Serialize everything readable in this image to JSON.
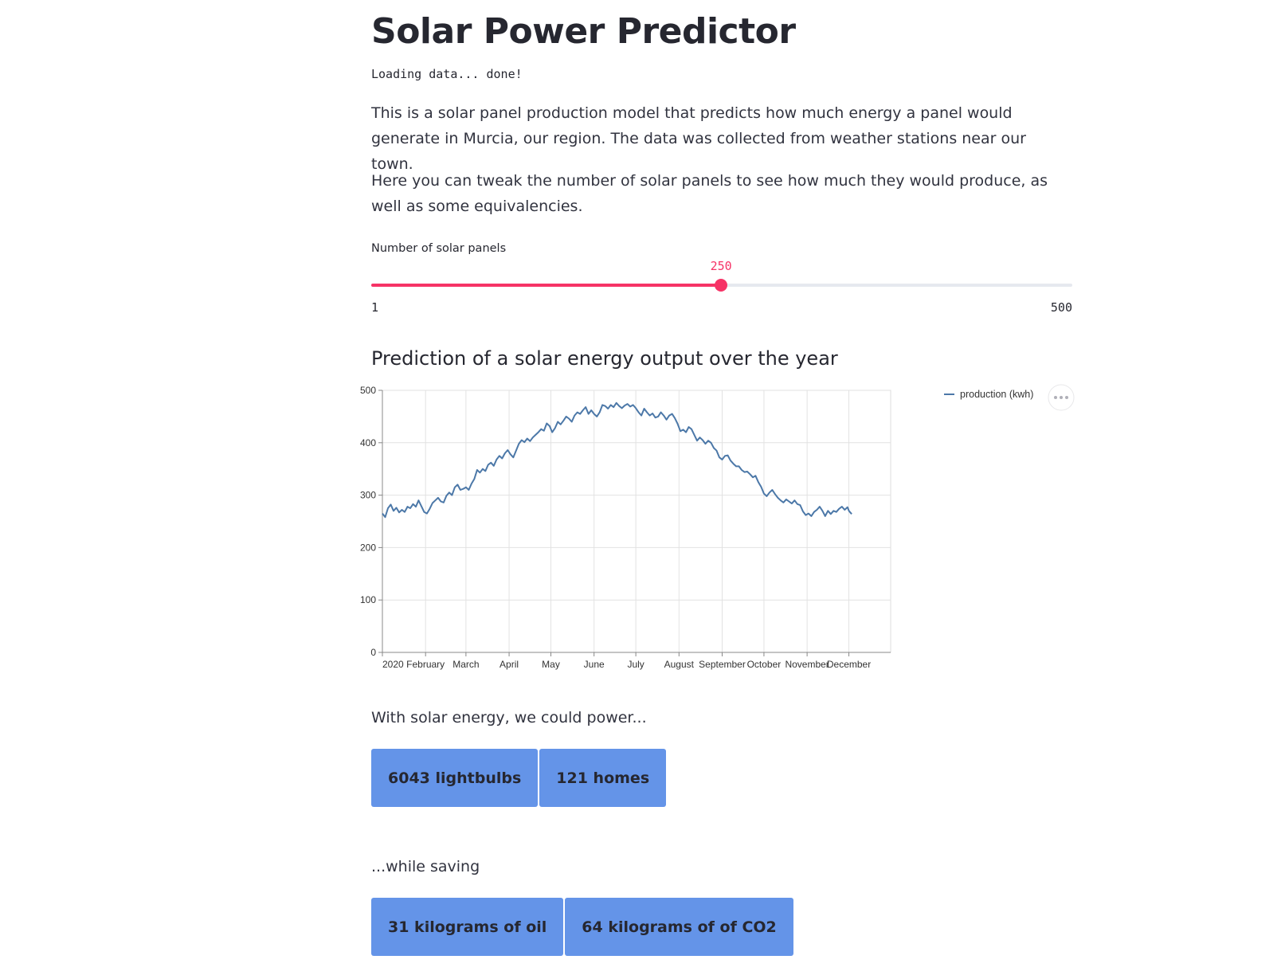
{
  "page": {
    "title": "Solar Power Predictor",
    "loading_text": "Loading data... done!",
    "intro_paragraph_1": "This is a solar panel production model that predicts how much energy a panel would generate in Murcia, our region. The data was collected from weather stations near our town.",
    "intro_paragraph_2": "Here you can tweak the number of solar panels to see how much they would produce, as well as some equivalencies."
  },
  "slider": {
    "label": "Number of solar panels",
    "value": 250,
    "min": 1,
    "max": 500,
    "value_text": "250",
    "min_text": "1",
    "max_text": "500",
    "accent_color": "#f63366",
    "track_color": "#e6e9ef"
  },
  "chart_section": {
    "subheader": "Prediction of a solar energy output over the year",
    "menu_icon": "ellipsis-icon"
  },
  "chart_data": {
    "type": "line",
    "title": "",
    "xlabel": "",
    "ylabel": "",
    "ylim": [
      0,
      500
    ],
    "xlim": [
      "2020-01-01",
      "2020-12-31"
    ],
    "yticks": [
      0,
      100,
      200,
      300,
      400,
      500
    ],
    "xticks": [
      {
        "date": "2020-01-01",
        "label": "2020"
      },
      {
        "date": "2020-02-01",
        "label": "February"
      },
      {
        "date": "2020-03-01",
        "label": "March"
      },
      {
        "date": "2020-04-01",
        "label": "April"
      },
      {
        "date": "2020-05-01",
        "label": "May"
      },
      {
        "date": "2020-06-01",
        "label": "June"
      },
      {
        "date": "2020-07-01",
        "label": "July"
      },
      {
        "date": "2020-08-01",
        "label": "August"
      },
      {
        "date": "2020-09-01",
        "label": "September"
      },
      {
        "date": "2020-10-01",
        "label": "October"
      },
      {
        "date": "2020-11-01",
        "label": "November"
      },
      {
        "date": "2020-12-01",
        "label": "December"
      }
    ],
    "grid": true,
    "legend_position": "top-right",
    "series": [
      {
        "name": "production (kwh)",
        "color": "#4c78a8",
        "points": [
          [
            "2020-01-01",
            265
          ],
          [
            "2020-01-03",
            258
          ],
          [
            "2020-01-05",
            275
          ],
          [
            "2020-01-07",
            282
          ],
          [
            "2020-01-09",
            270
          ],
          [
            "2020-01-11",
            276
          ],
          [
            "2020-01-13",
            267
          ],
          [
            "2020-01-15",
            272
          ],
          [
            "2020-01-17",
            268
          ],
          [
            "2020-01-19",
            278
          ],
          [
            "2020-01-21",
            275
          ],
          [
            "2020-01-23",
            283
          ],
          [
            "2020-01-25",
            278
          ],
          [
            "2020-01-27",
            290
          ],
          [
            "2020-01-29",
            279
          ],
          [
            "2020-01-31",
            268
          ],
          [
            "2020-02-02",
            265
          ],
          [
            "2020-02-04",
            274
          ],
          [
            "2020-02-06",
            285
          ],
          [
            "2020-02-08",
            290
          ],
          [
            "2020-02-10",
            295
          ],
          [
            "2020-02-12",
            288
          ],
          [
            "2020-02-14",
            286
          ],
          [
            "2020-02-16",
            299
          ],
          [
            "2020-02-18",
            305
          ],
          [
            "2020-02-20",
            300
          ],
          [
            "2020-02-22",
            315
          ],
          [
            "2020-02-24",
            320
          ],
          [
            "2020-02-26",
            310
          ],
          [
            "2020-02-28",
            312
          ],
          [
            "2020-03-01",
            315
          ],
          [
            "2020-03-03",
            310
          ],
          [
            "2020-03-05",
            322
          ],
          [
            "2020-03-07",
            331
          ],
          [
            "2020-03-09",
            348
          ],
          [
            "2020-03-11",
            343
          ],
          [
            "2020-03-13",
            350
          ],
          [
            "2020-03-15",
            346
          ],
          [
            "2020-03-17",
            358
          ],
          [
            "2020-03-19",
            362
          ],
          [
            "2020-03-21",
            356
          ],
          [
            "2020-03-23",
            368
          ],
          [
            "2020-03-25",
            375
          ],
          [
            "2020-03-27",
            370
          ],
          [
            "2020-03-29",
            380
          ],
          [
            "2020-03-31",
            386
          ],
          [
            "2020-04-02",
            378
          ],
          [
            "2020-04-04",
            372
          ],
          [
            "2020-04-06",
            385
          ],
          [
            "2020-04-08",
            398
          ],
          [
            "2020-04-10",
            405
          ],
          [
            "2020-04-12",
            401
          ],
          [
            "2020-04-14",
            408
          ],
          [
            "2020-04-16",
            403
          ],
          [
            "2020-04-18",
            410
          ],
          [
            "2020-04-20",
            415
          ],
          [
            "2020-04-22",
            420
          ],
          [
            "2020-04-24",
            426
          ],
          [
            "2020-04-26",
            423
          ],
          [
            "2020-04-28",
            437
          ],
          [
            "2020-04-30",
            432
          ],
          [
            "2020-05-02",
            420
          ],
          [
            "2020-05-04",
            428
          ],
          [
            "2020-05-06",
            440
          ],
          [
            "2020-05-08",
            435
          ],
          [
            "2020-05-10",
            442
          ],
          [
            "2020-05-12",
            450
          ],
          [
            "2020-05-14",
            446
          ],
          [
            "2020-05-16",
            440
          ],
          [
            "2020-05-18",
            452
          ],
          [
            "2020-05-20",
            458
          ],
          [
            "2020-05-22",
            455
          ],
          [
            "2020-05-24",
            462
          ],
          [
            "2020-05-26",
            468
          ],
          [
            "2020-05-28",
            455
          ],
          [
            "2020-05-30",
            462
          ],
          [
            "2020-06-01",
            455
          ],
          [
            "2020-06-03",
            450
          ],
          [
            "2020-06-05",
            458
          ],
          [
            "2020-06-07",
            472
          ],
          [
            "2020-06-09",
            470
          ],
          [
            "2020-06-11",
            465
          ],
          [
            "2020-06-13",
            472
          ],
          [
            "2020-06-15",
            468
          ],
          [
            "2020-06-17",
            476
          ],
          [
            "2020-06-19",
            470
          ],
          [
            "2020-06-21",
            466
          ],
          [
            "2020-06-23",
            471
          ],
          [
            "2020-06-25",
            474
          ],
          [
            "2020-06-27",
            469
          ],
          [
            "2020-06-29",
            472
          ],
          [
            "2020-07-01",
            466
          ],
          [
            "2020-07-03",
            458
          ],
          [
            "2020-07-05",
            452
          ],
          [
            "2020-07-07",
            465
          ],
          [
            "2020-07-09",
            458
          ],
          [
            "2020-07-11",
            452
          ],
          [
            "2020-07-13",
            456
          ],
          [
            "2020-07-15",
            448
          ],
          [
            "2020-07-17",
            450
          ],
          [
            "2020-07-19",
            458
          ],
          [
            "2020-07-21",
            452
          ],
          [
            "2020-07-23",
            444
          ],
          [
            "2020-07-25",
            452
          ],
          [
            "2020-07-27",
            455
          ],
          [
            "2020-07-29",
            447
          ],
          [
            "2020-07-31",
            436
          ],
          [
            "2020-08-02",
            422
          ],
          [
            "2020-08-04",
            425
          ],
          [
            "2020-08-06",
            420
          ],
          [
            "2020-08-08",
            430
          ],
          [
            "2020-08-10",
            426
          ],
          [
            "2020-08-12",
            415
          ],
          [
            "2020-08-14",
            404
          ],
          [
            "2020-08-16",
            410
          ],
          [
            "2020-08-18",
            405
          ],
          [
            "2020-08-20",
            398
          ],
          [
            "2020-08-22",
            404
          ],
          [
            "2020-08-24",
            400
          ],
          [
            "2020-08-26",
            390
          ],
          [
            "2020-08-28",
            385
          ],
          [
            "2020-08-30",
            372
          ],
          [
            "2020-09-01",
            368
          ],
          [
            "2020-09-03",
            375
          ],
          [
            "2020-09-05",
            376
          ],
          [
            "2020-09-07",
            366
          ],
          [
            "2020-09-09",
            360
          ],
          [
            "2020-09-11",
            355
          ],
          [
            "2020-09-13",
            355
          ],
          [
            "2020-09-15",
            348
          ],
          [
            "2020-09-17",
            344
          ],
          [
            "2020-09-19",
            345
          ],
          [
            "2020-09-21",
            340
          ],
          [
            "2020-09-23",
            334
          ],
          [
            "2020-09-25",
            337
          ],
          [
            "2020-09-27",
            325
          ],
          [
            "2020-09-29",
            316
          ],
          [
            "2020-10-01",
            303
          ],
          [
            "2020-10-03",
            298
          ],
          [
            "2020-10-05",
            305
          ],
          [
            "2020-10-07",
            310
          ],
          [
            "2020-10-09",
            302
          ],
          [
            "2020-10-11",
            295
          ],
          [
            "2020-10-13",
            290
          ],
          [
            "2020-10-15",
            286
          ],
          [
            "2020-10-17",
            292
          ],
          [
            "2020-10-19",
            288
          ],
          [
            "2020-10-21",
            284
          ],
          [
            "2020-10-23",
            290
          ],
          [
            "2020-10-25",
            283
          ],
          [
            "2020-10-27",
            281
          ],
          [
            "2020-10-29",
            269
          ],
          [
            "2020-10-31",
            262
          ],
          [
            "2020-11-02",
            265
          ],
          [
            "2020-11-04",
            260
          ],
          [
            "2020-11-06",
            268
          ],
          [
            "2020-11-08",
            272
          ],
          [
            "2020-11-10",
            278
          ],
          [
            "2020-11-12",
            270
          ],
          [
            "2020-11-14",
            260
          ],
          [
            "2020-11-16",
            270
          ],
          [
            "2020-11-18",
            264
          ],
          [
            "2020-11-20",
            270
          ],
          [
            "2020-11-22",
            268
          ],
          [
            "2020-11-24",
            274
          ],
          [
            "2020-11-26",
            278
          ],
          [
            "2020-11-28",
            272
          ],
          [
            "2020-11-30",
            277
          ],
          [
            "2020-12-01",
            270
          ],
          [
            "2020-12-03",
            264
          ]
        ]
      }
    ]
  },
  "equivalencies": {
    "power_text": "With solar energy, we could power...",
    "lightbulbs": "6043 lightbulbs",
    "homes": "121 homes",
    "saving_text": "...while saving",
    "oil": "31 kilograms of oil",
    "co2": "64 kilograms of of CO2",
    "card_color": "#6494e8"
  }
}
